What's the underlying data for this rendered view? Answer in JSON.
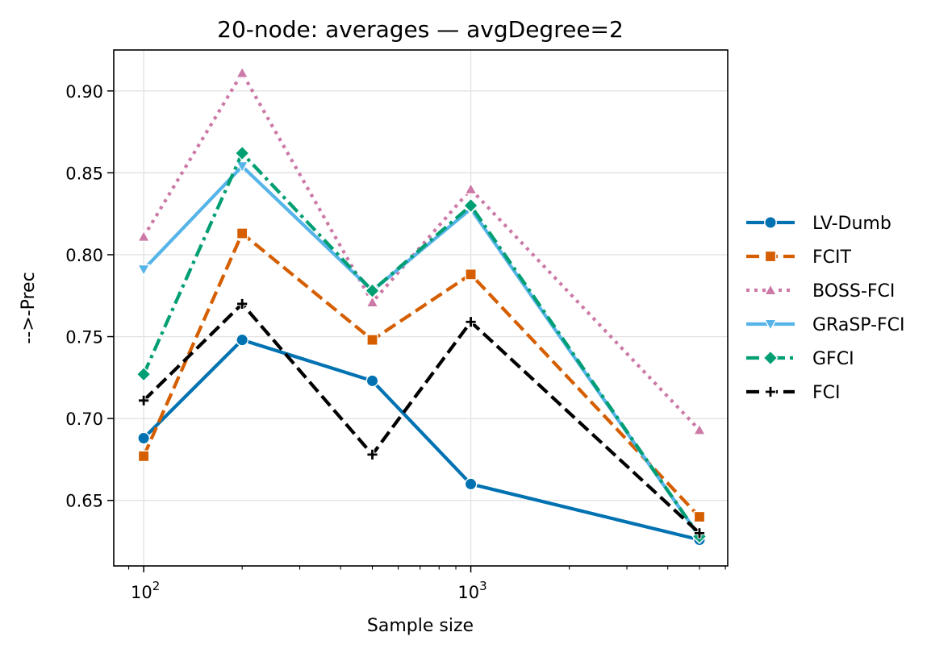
{
  "chart_data": {
    "type": "line",
    "title": "20-node: averages — avgDegree=2",
    "xlabel": "Sample size",
    "ylabel": "-->-Prec",
    "xscale": "log",
    "xlim": [
      81,
      6100
    ],
    "ylim": [
      0.61,
      0.925
    ],
    "grid": true,
    "legend_position": "right-outside",
    "x": [
      100,
      200,
      500,
      1000,
      5000
    ],
    "x_tick_labels": [
      {
        "value": 100,
        "base": "10",
        "exp": "2"
      },
      {
        "value": 1000,
        "base": "10",
        "exp": "3"
      }
    ],
    "y_ticks": [
      0.65,
      0.7,
      0.75,
      0.8,
      0.85,
      0.9
    ],
    "y_tick_labels": [
      "0.65",
      "0.70",
      "0.75",
      "0.80",
      "0.85",
      "0.90"
    ],
    "series": [
      {
        "name": "LV-Dumb",
        "color": "#0072B2",
        "style": "solid",
        "marker": "circle",
        "values": [
          0.688,
          0.748,
          0.723,
          0.66,
          0.626
        ]
      },
      {
        "name": "FCIT",
        "color": "#D55E00",
        "style": "dashed",
        "marker": "square",
        "values": [
          0.677,
          0.813,
          0.748,
          0.788,
          0.64
        ]
      },
      {
        "name": "BOSS-FCI",
        "color": "#CC79A7",
        "style": "dotted",
        "marker": "triangle-up",
        "values": [
          0.811,
          0.911,
          0.771,
          0.84,
          0.693
        ]
      },
      {
        "name": "GRaSP-FCI",
        "color": "#56B4E9",
        "style": "solid",
        "marker": "triangle-down",
        "values": [
          0.791,
          0.854,
          0.778,
          0.828,
          0.628
        ]
      },
      {
        "name": "GFCI",
        "color": "#009E73",
        "style": "dashdot",
        "marker": "diamond",
        "values": [
          0.727,
          0.862,
          0.778,
          0.83,
          0.628
        ]
      },
      {
        "name": "FCI",
        "color": "#000000",
        "style": "dashed",
        "marker": "plus",
        "values": [
          0.711,
          0.77,
          0.678,
          0.759,
          0.63
        ]
      }
    ]
  }
}
